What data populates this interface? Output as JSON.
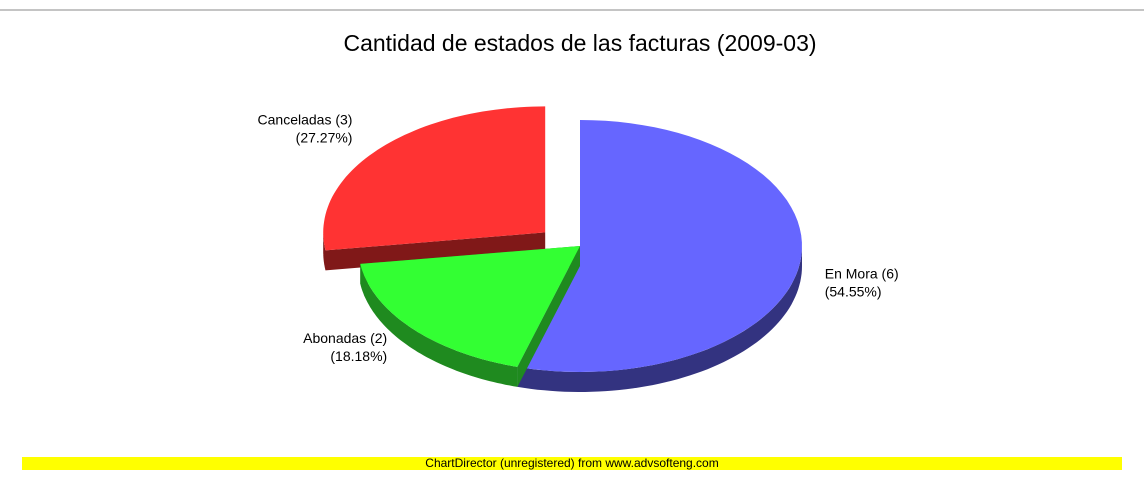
{
  "chart_data": {
    "type": "pie",
    "title": "Cantidad de estados de las facturas (2009-03)",
    "categories": [
      "En Mora (6)",
      "Abonadas (2)",
      "Canceladas (3)"
    ],
    "values": [
      54.55,
      18.18,
      27.27
    ],
    "value_labels": [
      "(54.55%)",
      "(18.18%)",
      "(27.27%)"
    ],
    "colors": [
      "#6666ff",
      "#33ff33",
      "#ff3333"
    ],
    "side_colors": [
      "#333380",
      "#1f8a1f",
      "#801818"
    ],
    "exploded": [
      false,
      false,
      true
    ],
    "footer": "ChartDirector (unregistered) from www.advsofteng.com"
  }
}
